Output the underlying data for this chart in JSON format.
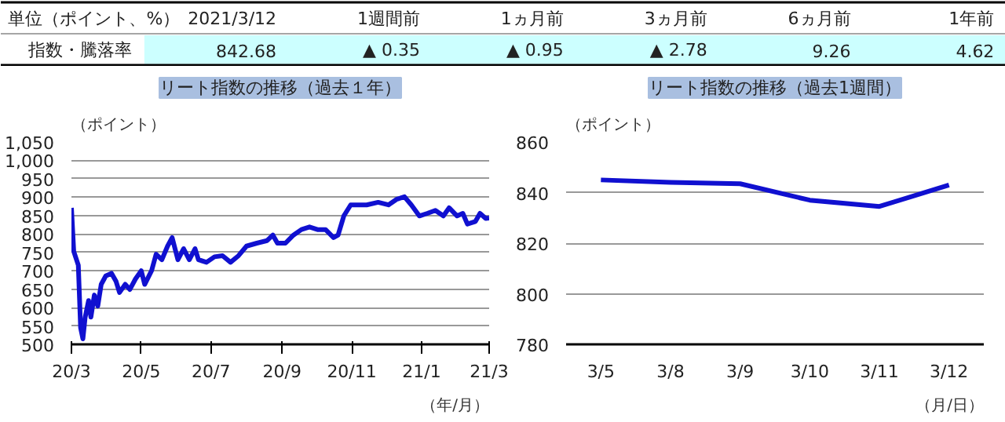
{
  "chart_data": [
    {
      "type": "other",
      "annotations": [
        "単位（ポイント、%）",
        "2021/3/12",
        "1週間前",
        "1ヵ月前",
        "3ヵ月前",
        "6ヵ月前",
        "1年前",
        "指数・騰落率",
        "842.68",
        "▲ 0.35",
        "▲ 0.95",
        "▲ 2.78",
        "9.26",
        "4.62"
      ]
    },
    {
      "type": "line",
      "title": "リート指数の推移（過去１年）",
      "ylabel": "（ポイント）",
      "xlabel": "（年/月）",
      "x": [
        "2020-03-12",
        "2020-03-14",
        "2020-03-18",
        "2020-03-20",
        "2020-03-22",
        "2020-03-24",
        "2020-03-27",
        "2020-03-29",
        "2020-04-01",
        "2020-04-04",
        "2020-04-07",
        "2020-04-11",
        "2020-04-16",
        "2020-04-20",
        "2020-04-23",
        "2020-04-28",
        "2020-05-02",
        "2020-05-07",
        "2020-05-12",
        "2020-05-15",
        "2020-05-21",
        "2020-05-25",
        "2020-05-30",
        "2020-06-04",
        "2020-06-08",
        "2020-06-13",
        "2020-06-18",
        "2020-06-23",
        "2020-06-28",
        "2020-07-01",
        "2020-07-08",
        "2020-07-15",
        "2020-07-22",
        "2020-07-29",
        "2020-08-05",
        "2020-08-12",
        "2020-08-21",
        "2020-08-30",
        "2020-09-04",
        "2020-09-08",
        "2020-09-15",
        "2020-09-22",
        "2020-09-29",
        "2020-10-06",
        "2020-10-13",
        "2020-10-20",
        "2020-10-27",
        "2020-10-31",
        "2020-11-05",
        "2020-11-11",
        "2020-11-16",
        "2020-11-25",
        "2020-12-05",
        "2020-12-14",
        "2020-12-21",
        "2020-12-28",
        "2021-01-03",
        "2021-01-10",
        "2021-01-17",
        "2021-01-24",
        "2021-01-31",
        "2021-02-05",
        "2021-02-12",
        "2021-02-17",
        "2021-02-21",
        "2021-02-28",
        "2021-03-04",
        "2021-03-09",
        "2021-03-12"
      ],
      "series": [
        {
          "color": "#1010d0",
          "values": [
            871,
            753,
            715,
            545,
            515,
            574,
            619,
            574,
            634,
            604,
            663,
            686,
            693,
            671,
            641,
            663,
            649,
            678,
            700,
            663,
            700,
            745,
            730,
            767,
            790,
            730,
            760,
            730,
            760,
            730,
            723,
            738,
            741,
            723,
            741,
            767,
            775,
            782,
            797,
            775,
            775,
            797,
            812,
            819,
            812,
            812,
            790,
            797,
            849,
            879,
            879,
            879,
            886,
            879,
            894,
            901,
            879,
            849,
            856,
            864,
            849,
            871,
            849,
            856,
            827,
            834,
            856,
            842,
            843
          ]
        }
      ],
      "xlim": [
        "2020-03-12",
        "2021-03-12"
      ],
      "xticks": [
        {
          "value": "2020-03-12",
          "label": "20/3"
        },
        {
          "value": "2020-05-12",
          "label": "20/5"
        },
        {
          "value": "2020-07-12",
          "label": "20/7"
        },
        {
          "value": "2020-09-12",
          "label": "20/9"
        },
        {
          "value": "2020-11-12",
          "label": "20/11"
        },
        {
          "value": "2021-01-12",
          "label": "21/1"
        },
        {
          "value": "2021-03-12",
          "label": "21/3"
        }
      ],
      "ylim": [
        500,
        1050
      ],
      "yticks": [
        500,
        550,
        600,
        650,
        700,
        750,
        800,
        850,
        900,
        950,
        {
          "value": 1000,
          "label": "1,000"
        },
        {
          "value": 1050,
          "label": "1,050"
        }
      ],
      "grid": "y",
      "marker": "none",
      "line_style": "solid"
    },
    {
      "type": "line",
      "title": "リート指数の推移（過去1週間）",
      "ylabel": "（ポイント）",
      "xlabel": "（月/日）",
      "categories": [
        "3/5",
        "3/8",
        "3/9",
        "3/10",
        "3/11",
        "3/12"
      ],
      "series": [
        {
          "color": "#1010d0",
          "values": [
            845,
            844,
            843.5,
            837,
            834.5,
            843
          ]
        }
      ],
      "ylim": [
        780,
        860
      ],
      "yticks": [
        780,
        800,
        820,
        840,
        860
      ],
      "grid": "y",
      "marker": "none",
      "line_style": "solid"
    }
  ]
}
